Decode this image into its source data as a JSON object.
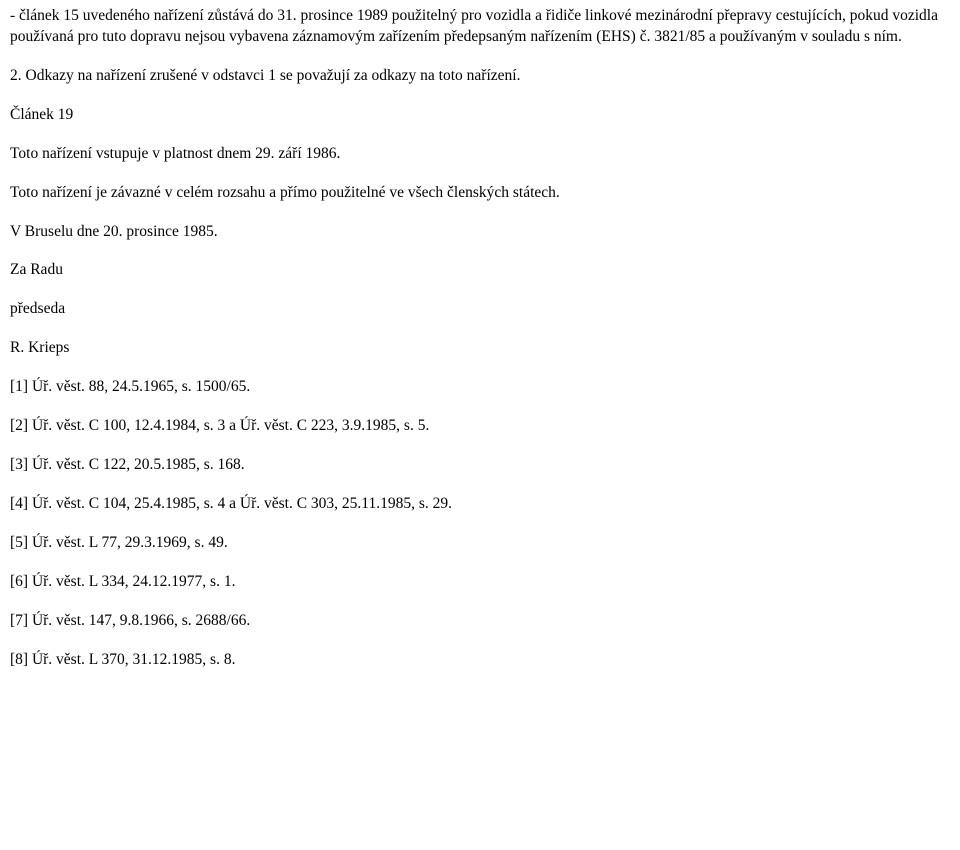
{
  "p1": "- článek 15 uvedeného nařízení zůstává do 31. prosince 1989 použitelný pro vozidla a řidiče linkové mezinárodní přepravy cestujících, pokud vozidla používaná pro tuto dopravu nejsou vybavena záznamovým zařízením předepsaným nařízením (EHS) č. 3821/85 a používaným v souladu s ním.",
  "p2": "2. Odkazy na nařízení zrušené v odstavci 1 se považují za odkazy na toto nařízení.",
  "p3": "Článek 19",
  "p4": "Toto nařízení vstupuje v platnost dnem 29. září 1986.",
  "p5": "Toto nařízení je závazné v celém rozsahu a přímo použitelné ve všech členských státech.",
  "p6": "V Bruselu dne 20. prosince 1985.",
  "p7": "Za Radu",
  "p8": "předseda",
  "p9": "R. Krieps",
  "r1": "[1] Úř. věst. 88, 24.5.1965, s. 1500/65.",
  "r2": "[2] Úř. věst. C 100, 12.4.1984, s. 3 a Úř. věst. C 223, 3.9.1985, s. 5.",
  "r3": "[3] Úř. věst. C 122, 20.5.1985, s. 168.",
  "r4": "[4] Úř. věst. C 104, 25.4.1985, s. 4 a Úř. věst. C 303, 25.11.1985, s. 29.",
  "r5": "[5] Úř. věst. L 77, 29.3.1969, s. 49.",
  "r6": "[6] Úř. věst. L 334, 24.12.1977, s. 1.",
  "r7": "[7] Úř. věst. 147, 9.8.1966, s. 2688/66.",
  "r8": "[8] Úř. věst. L 370, 31.12.1985, s. 8."
}
